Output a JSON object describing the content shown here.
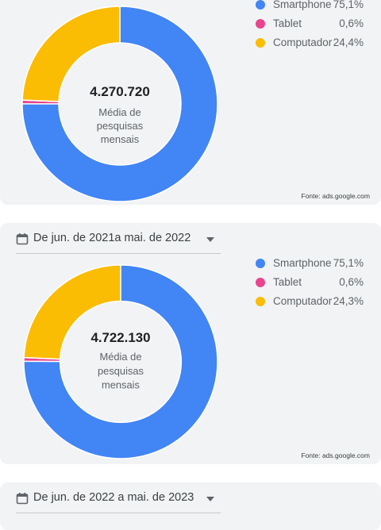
{
  "charts": [
    {
      "date_range": "",
      "center_value": "4.270.720",
      "center_label": [
        "Média de",
        "pesquisas",
        "mensais"
      ],
      "source": "Fonte: ads.google.com",
      "legend": [
        {
          "name": "Smartphone",
          "value": "75,1%"
        },
        {
          "name": "Tablet",
          "value": "0,6%"
        },
        {
          "name": "Computador",
          "value": "24,4%"
        }
      ]
    },
    {
      "date_range": "De jun. de 2021a mai. de 2022",
      "center_value": "4.722.130",
      "center_label": [
        "Média de",
        "pesquisas",
        "mensais"
      ],
      "source": "Fonte: ads.google.com",
      "legend": [
        {
          "name": "Smartphone",
          "value": "75,1%"
        },
        {
          "name": "Tablet",
          "value": "0,6%"
        },
        {
          "name": "Computador",
          "value": "24,3%"
        }
      ]
    },
    {
      "date_range": "De jun. de 2022 a mai. de 2023"
    }
  ],
  "colors": {
    "smartphone": "#4285f4",
    "tablet": "#e8458b",
    "computador": "#fbbc04"
  },
  "chart_data": [
    {
      "type": "pie",
      "categories": [
        "Smartphone",
        "Tablet",
        "Computador"
      ],
      "values": [
        75.1,
        0.6,
        24.4
      ]
    },
    {
      "type": "pie",
      "categories": [
        "Smartphone",
        "Tablet",
        "Computador"
      ],
      "values": [
        75.1,
        0.6,
        24.3
      ]
    }
  ]
}
